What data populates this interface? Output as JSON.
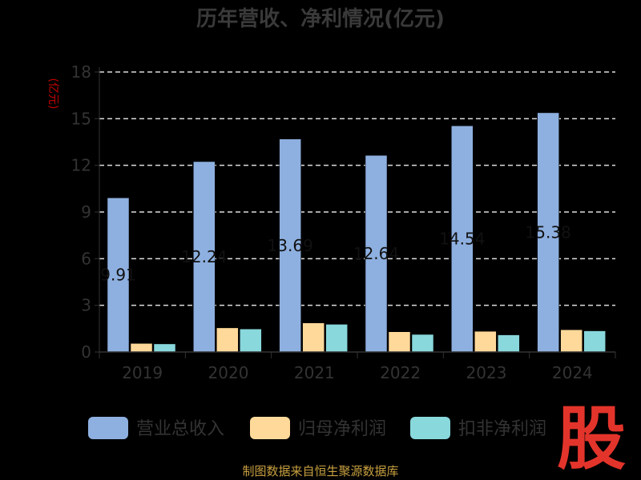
{
  "chart_data": {
    "type": "bar",
    "title": "历年营收、净利情况(亿元)",
    "ylabel": "(亿元)",
    "ylim": [
      0,
      18
    ],
    "yticks": [
      0,
      3,
      6,
      9,
      12,
      15,
      18
    ],
    "grid": true,
    "legend_position": "bottom",
    "categories": [
      "2019",
      "2020",
      "2021",
      "2022",
      "2023",
      "2024"
    ],
    "series": [
      {
        "name": "营业总收入",
        "color": "#8eb0e0",
        "values": [
          9.91,
          12.24,
          13.69,
          12.64,
          14.54,
          15.38
        ]
      },
      {
        "name": "归母净利润",
        "color": "#ffd99a",
        "values": [
          0.55,
          1.55,
          1.87,
          1.3,
          1.33,
          1.43
        ]
      },
      {
        "name": "扣非净利润",
        "color": "#88d8dc",
        "values": [
          0.52,
          1.48,
          1.78,
          1.13,
          1.1,
          1.36
        ]
      }
    ],
    "data_labels": [
      "9.91",
      "12.24",
      "13.69",
      "12.64",
      "14.54",
      "15.38"
    ]
  },
  "footer": "制图数据来自恒生聚源数据库",
  "watermark": {
    "glyph": "股",
    "color": "#e3342b"
  }
}
